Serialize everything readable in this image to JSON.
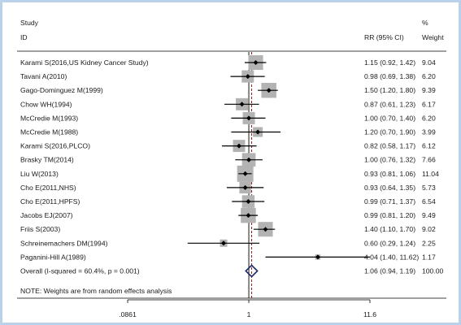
{
  "header": {
    "study_label": "Study",
    "id_label": "ID",
    "rr_label": "RR (95% CI)",
    "pct_label": "%",
    "weight_label": "Weight"
  },
  "colors": {
    "box": "#b3b3b3",
    "point": "#000000",
    "ci_line": "#000000",
    "null_line": "#000000",
    "overall_line": "#8b0000",
    "diamond": "#1f2a6b",
    "frame": "#b9d1ea"
  },
  "footer_note": "NOTE: Weights are from random effects analysis",
  "chart_data": {
    "type": "forest",
    "xscale": "log",
    "null_value": 1,
    "x_ticks": [
      ".0861",
      "1",
      "11.6"
    ],
    "x_tick_values": [
      0.0861,
      1,
      11.6
    ],
    "xlim": [
      0.0861,
      11.6
    ],
    "studies": [
      {
        "label": "Karami S(2016,US Kidney Cancer Study)",
        "rr": 1.15,
        "lo": 0.92,
        "hi": 1.42,
        "rr_text": "1.15 (0.92, 1.42)",
        "weight": 9.04,
        "weight_text": "9.04"
      },
      {
        "label": "Tavani A(2010)",
        "rr": 0.98,
        "lo": 0.69,
        "hi": 1.38,
        "rr_text": "0.98 (0.69, 1.38)",
        "weight": 6.2,
        "weight_text": "6.20"
      },
      {
        "label": "Gago-Dominguez M(1999)",
        "rr": 1.5,
        "lo": 1.2,
        "hi": 1.8,
        "rr_text": "1.50 (1.20, 1.80)",
        "weight": 9.39,
        "weight_text": "9.39"
      },
      {
        "label": "Chow WH(1994)",
        "rr": 0.87,
        "lo": 0.61,
        "hi": 1.23,
        "rr_text": "0.87 (0.61, 1.23)",
        "weight": 6.17,
        "weight_text": "6.17"
      },
      {
        "label": "McCredie M(1993)",
        "rr": 1.0,
        "lo": 0.7,
        "hi": 1.4,
        "rr_text": "1.00 (0.70, 1.40)",
        "weight": 6.2,
        "weight_text": "6.20"
      },
      {
        "label": "McCredie M(1988)",
        "rr": 1.2,
        "lo": 0.7,
        "hi": 1.9,
        "rr_text": "1.20 (0.70, 1.90)",
        "weight": 3.99,
        "weight_text": "3.99"
      },
      {
        "label": "Karami S(2016,PLCO)",
        "rr": 0.82,
        "lo": 0.58,
        "hi": 1.17,
        "rr_text": "0.82 (0.58, 1.17)",
        "weight": 6.12,
        "weight_text": "6.12"
      },
      {
        "label": "Brasky TM(2014)",
        "rr": 1.0,
        "lo": 0.76,
        "hi": 1.32,
        "rr_text": "1.00 (0.76, 1.32)",
        "weight": 7.66,
        "weight_text": "7.66"
      },
      {
        "label": "Liu W(2013)",
        "rr": 0.93,
        "lo": 0.81,
        "hi": 1.06,
        "rr_text": "0.93 (0.81, 1.06)",
        "weight": 11.04,
        "weight_text": "11.04"
      },
      {
        "label": "Cho E(2011,NHS)",
        "rr": 0.93,
        "lo": 0.64,
        "hi": 1.35,
        "rr_text": "0.93 (0.64, 1.35)",
        "weight": 5.73,
        "weight_text": "5.73"
      },
      {
        "label": "Cho E(2011,HPFS)",
        "rr": 0.99,
        "lo": 0.71,
        "hi": 1.37,
        "rr_text": "0.99 (0.71, 1.37)",
        "weight": 6.54,
        "weight_text": "6.54"
      },
      {
        "label": "Jacobs EJ(2007)",
        "rr": 0.99,
        "lo": 0.81,
        "hi": 1.2,
        "rr_text": "0.99 (0.81, 1.20)",
        "weight": 9.49,
        "weight_text": "9.49"
      },
      {
        "label": "Friis S(2003)",
        "rr": 1.4,
        "lo": 1.1,
        "hi": 1.7,
        "rr_text": "1.40 (1.10, 1.70)",
        "weight": 9.02,
        "weight_text": "9.02"
      },
      {
        "label": "Schreinemachers DM(1994)",
        "rr": 0.6,
        "lo": 0.29,
        "hi": 1.24,
        "rr_text": "0.60 (0.29, 1.24)",
        "weight": 2.25,
        "weight_text": "2.25"
      },
      {
        "label": "Paganini-Hill A(1989)",
        "rr": 4.04,
        "lo": 1.4,
        "hi": 11.62,
        "rr_text": "4.04 (1.40, 11.62)",
        "weight": 1.17,
        "weight_text": "1.17"
      }
    ],
    "overall": {
      "label": "Overall  (I-squared = 60.4%, p = 0.001)",
      "rr": 1.06,
      "lo": 0.94,
      "hi": 1.19,
      "rr_text": "1.06 (0.94, 1.19)",
      "weight_text": "100.00"
    }
  }
}
